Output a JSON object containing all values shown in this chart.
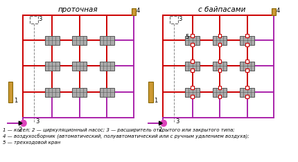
{
  "title_left": "проточная",
  "title_right": "с байпасами",
  "legend_line1": "1 — котел; 2 — циркуляционный насос; 3 — расширитель открытого или закрытого типа;",
  "legend_line2": "4 — воздухосборник (автоматический, полуавтоматический или с ручным удалением воздуха);",
  "legend_line3": "5 — трехходовой кран",
  "red": "#cc0000",
  "purple": "#aa22aa",
  "boiler_fill": "#cc9933",
  "boiler_edge": "#886600",
  "rad_fill": "#aaaaaa",
  "rad_edge": "#555555",
  "pump_color": "#dd44bb",
  "pipe_lw": 1.4,
  "fig_w": 4.3,
  "fig_h": 2.34,
  "dpi": 100
}
